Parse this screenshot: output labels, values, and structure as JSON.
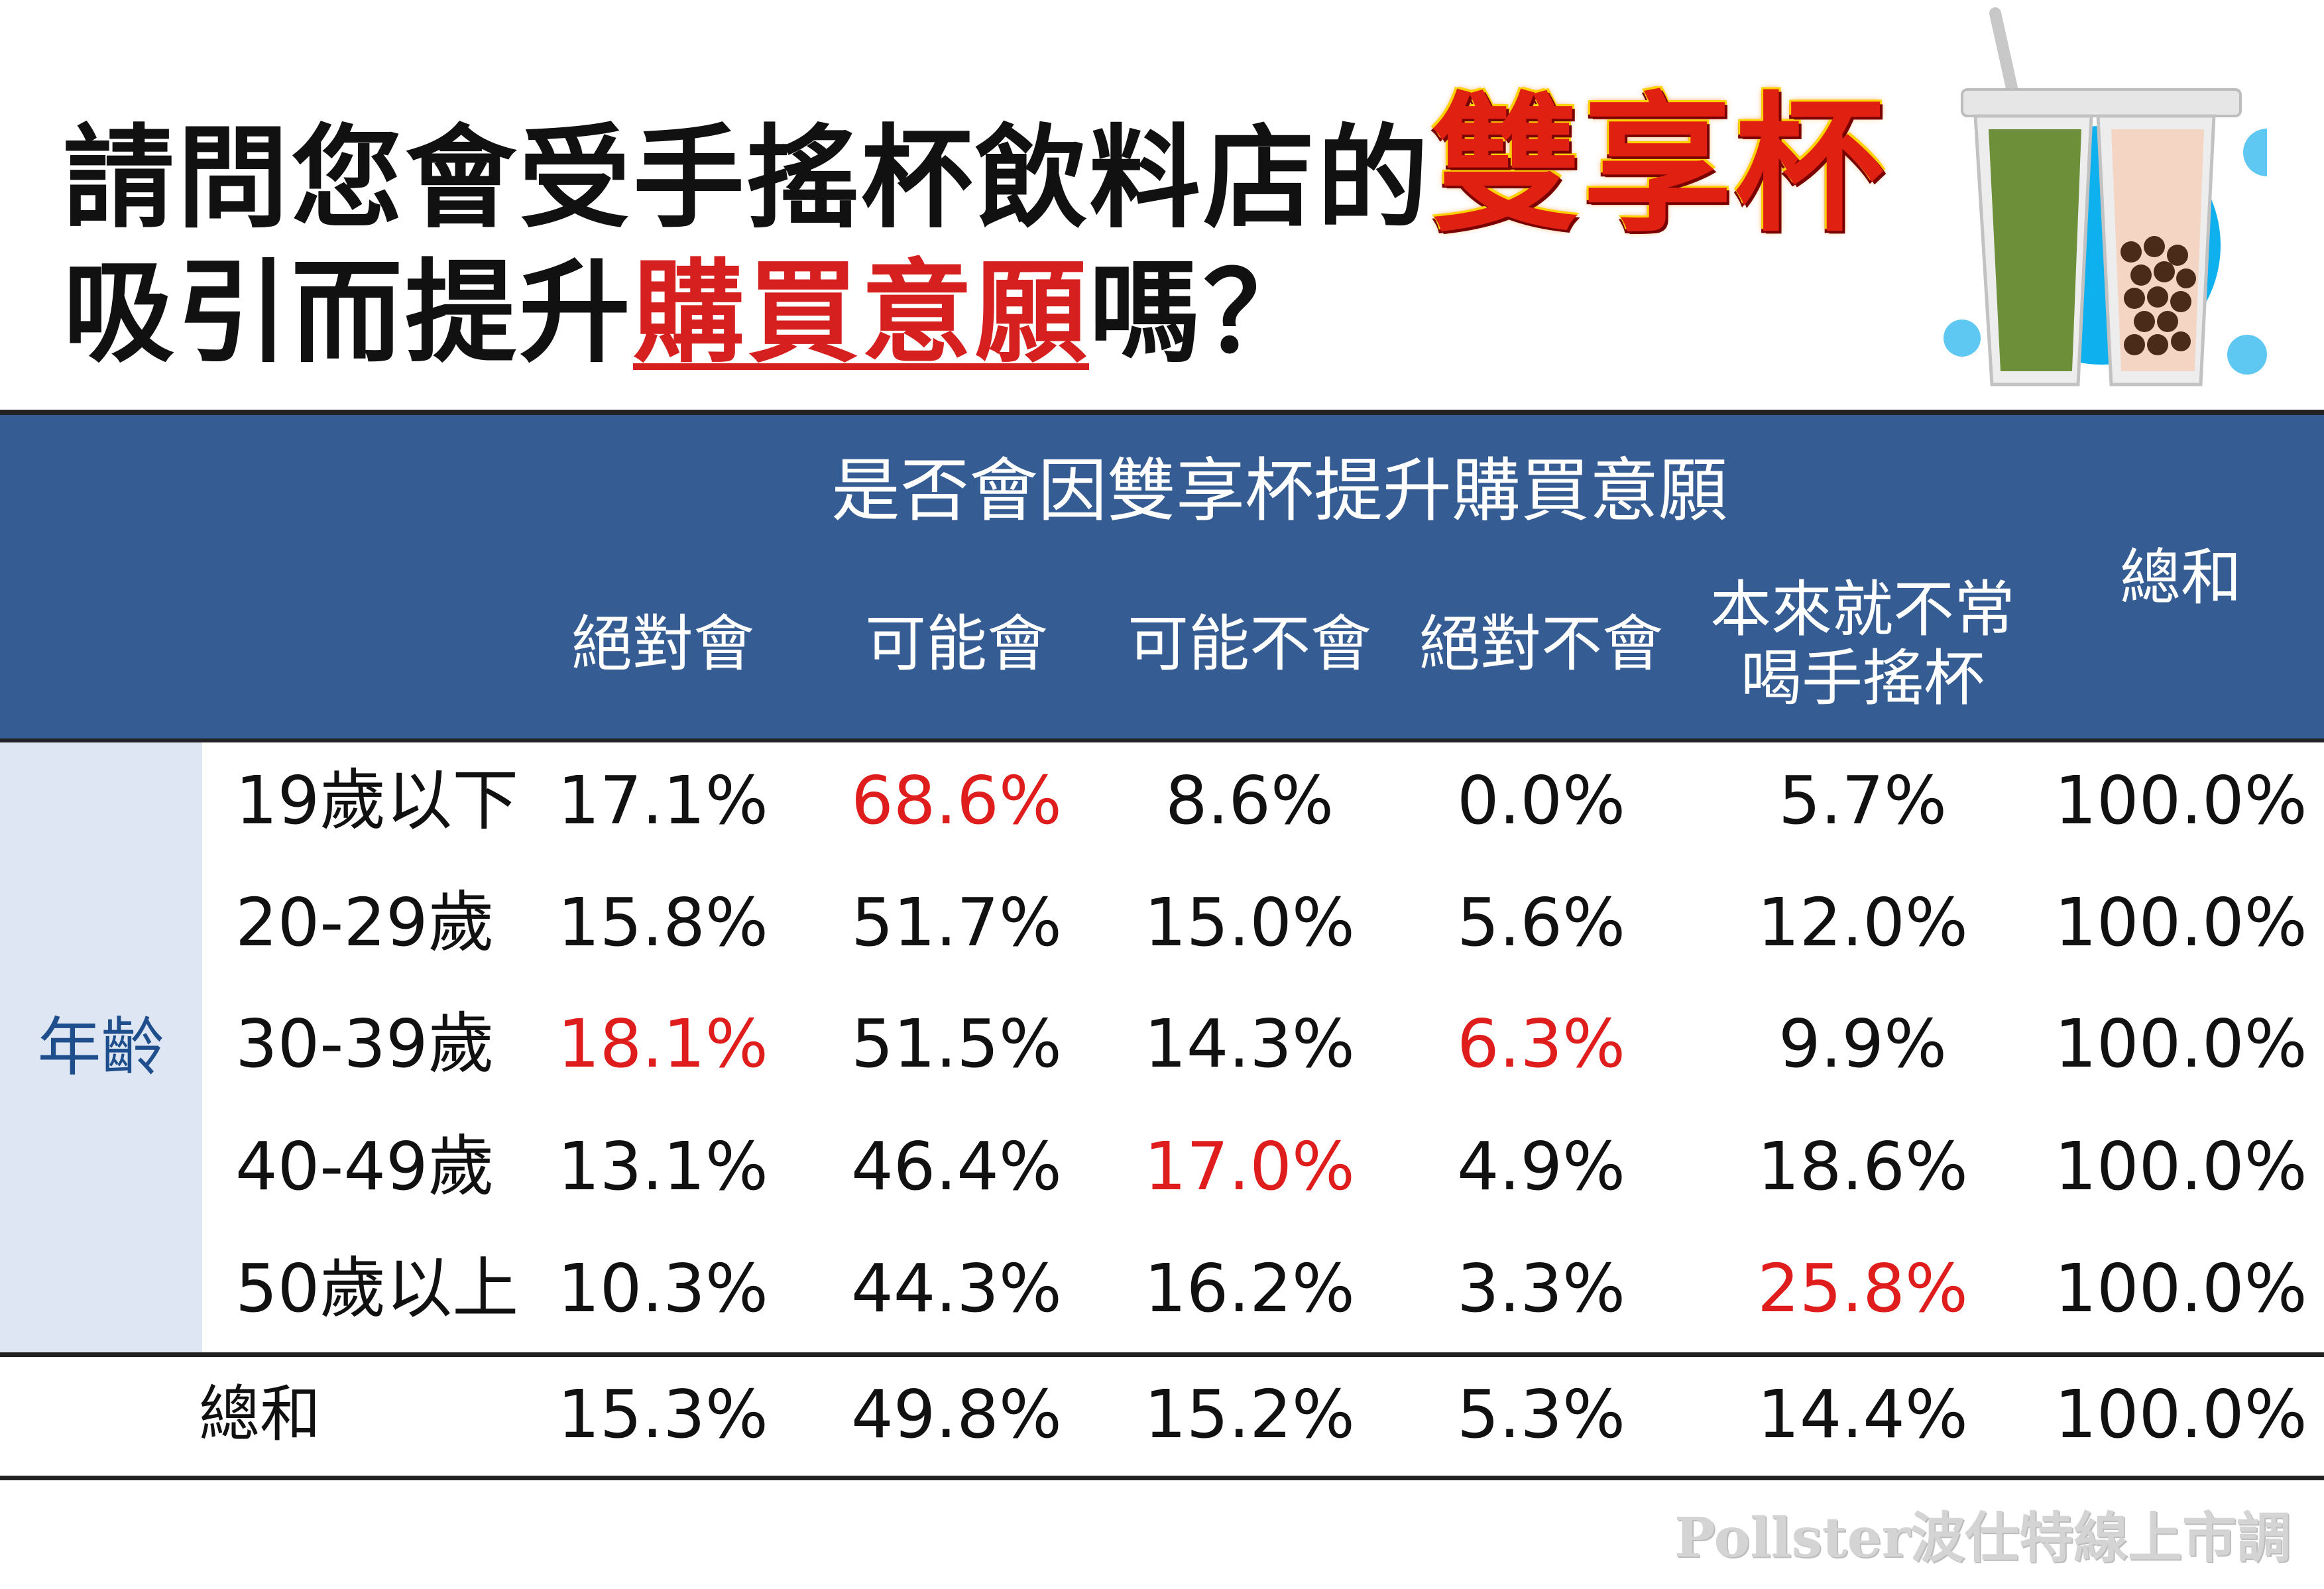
{
  "title": {
    "line1_prefix": "請問您會受手搖杯飲料店的",
    "line1_emphasis": "雙享杯",
    "line2_prefix": "吸引而提升",
    "line2_emphasis": "購買意願",
    "line2_suffix": "嗎？"
  },
  "watermark": "Pollster波仕特線上市調",
  "colors": {
    "header_band": "#355d94",
    "age_band": "#dde6f2",
    "highlight_red": "#e01d1d",
    "age_label": "#1f4e8c"
  },
  "chart_data": {
    "type": "table",
    "group_header": "是否會因雙享杯提升購買意願",
    "row_group_label": "年齡",
    "columns": [
      {
        "key": "c1",
        "label_lines": [
          "絕對會"
        ]
      },
      {
        "key": "c2",
        "label_lines": [
          "可能會"
        ]
      },
      {
        "key": "c3",
        "label_lines": [
          "可能不會"
        ]
      },
      {
        "key": "c4",
        "label_lines": [
          "絕對不會"
        ]
      },
      {
        "key": "c5",
        "label_lines": [
          "本來就不常",
          "喝手搖杯"
        ]
      },
      {
        "key": "total",
        "label_lines": [
          "總和"
        ]
      }
    ],
    "rows": [
      {
        "label": "19歲以下",
        "values": [
          "17.1%",
          "68.6%",
          "8.6%",
          "0.0%",
          "5.7%",
          "100.0%"
        ],
        "highlight": [
          false,
          true,
          false,
          false,
          false,
          false
        ]
      },
      {
        "label": "20-29歲",
        "values": [
          "15.8%",
          "51.7%",
          "15.0%",
          "5.6%",
          "12.0%",
          "100.0%"
        ],
        "highlight": [
          false,
          false,
          false,
          false,
          false,
          false
        ]
      },
      {
        "label": "30-39歲",
        "values": [
          "18.1%",
          "51.5%",
          "14.3%",
          "6.3%",
          "9.9%",
          "100.0%"
        ],
        "highlight": [
          true,
          false,
          false,
          true,
          false,
          false
        ]
      },
      {
        "label": "40-49歲",
        "values": [
          "13.1%",
          "46.4%",
          "17.0%",
          "4.9%",
          "18.6%",
          "100.0%"
        ],
        "highlight": [
          false,
          false,
          true,
          false,
          false,
          false
        ]
      },
      {
        "label": "50歲以上",
        "values": [
          "10.3%",
          "44.3%",
          "16.2%",
          "3.3%",
          "25.8%",
          "100.0%"
        ],
        "highlight": [
          false,
          false,
          false,
          false,
          true,
          false
        ]
      }
    ],
    "total_row": {
      "label": "總和",
      "values": [
        "15.3%",
        "49.8%",
        "15.2%",
        "5.3%",
        "14.4%",
        "100.0%"
      ]
    }
  }
}
